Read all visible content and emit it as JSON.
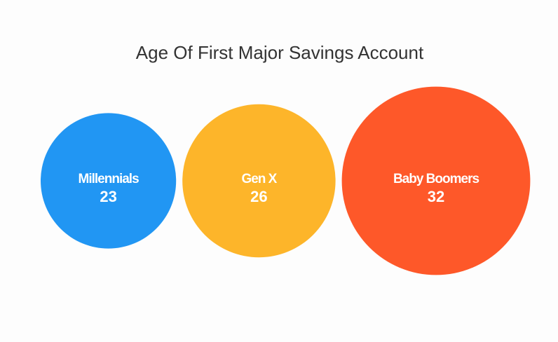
{
  "chart_data": {
    "type": "bubble",
    "title": "Age Of First Major Savings Account",
    "categories": [
      "Millennials",
      "Gen X",
      "Baby Boomers"
    ],
    "values": [
      23,
      26,
      32
    ],
    "colors": [
      "#2196f3",
      "#fdb52a",
      "#fe5829"
    ]
  }
}
